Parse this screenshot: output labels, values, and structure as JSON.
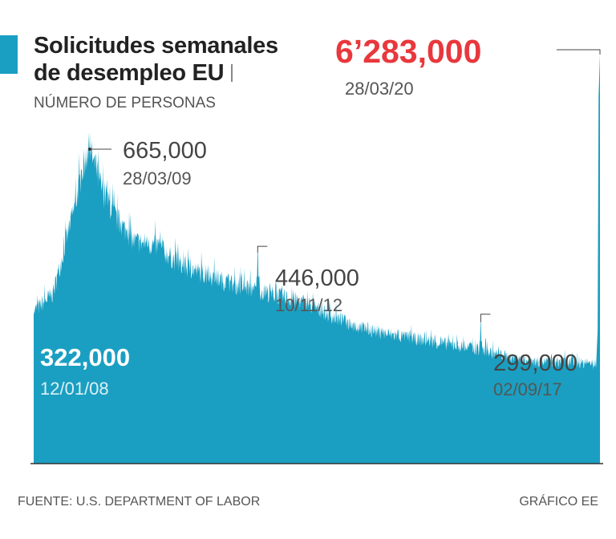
{
  "header": {
    "title_line1": "Solicitudes semanales",
    "title_line2": "de desempleo EU",
    "subtitle": "NÚMERO DE PERSONAS"
  },
  "footer": {
    "source": "FUENTE: U.S. DEPARTMENT OF LABOR",
    "credit": "GRÁFICO EE"
  },
  "colors": {
    "area": "#1a9fc2",
    "accent": "#1a9fc2",
    "highlight": "#e8383d",
    "axis": "#333333"
  },
  "chart_data": {
    "type": "area",
    "title": "Solicitudes semanales de desempleo EU",
    "ylabel": "NÚMERO DE PERSONAS",
    "xlim": [
      2008.03,
      2020.24
    ],
    "ylim": [
      0,
      6400000
    ],
    "scale_note": "values below ~700,000 share a stretched scale; the 2020 spike is drawn to the top",
    "anchors": [
      {
        "x": 2008.03,
        "y": 322000
      },
      {
        "x": 2008.45,
        "y": 360000
      },
      {
        "x": 2008.75,
        "y": 480000
      },
      {
        "x": 2008.95,
        "y": 560000
      },
      {
        "x": 2009.1,
        "y": 630000
      },
      {
        "x": 2009.24,
        "y": 665000
      },
      {
        "x": 2009.5,
        "y": 580000
      },
      {
        "x": 2009.8,
        "y": 520000
      },
      {
        "x": 2010.2,
        "y": 470000
      },
      {
        "x": 2010.7,
        "y": 460000
      },
      {
        "x": 2011.2,
        "y": 420000
      },
      {
        "x": 2011.6,
        "y": 405000
      },
      {
        "x": 2011.9,
        "y": 395000
      },
      {
        "x": 2012.3,
        "y": 380000
      },
      {
        "x": 2012.7,
        "y": 370000
      },
      {
        "x": 2013.3,
        "y": 355000
      },
      {
        "x": 2013.9,
        "y": 340000
      },
      {
        "x": 2014.5,
        "y": 310000
      },
      {
        "x": 2015.0,
        "y": 290000
      },
      {
        "x": 2015.6,
        "y": 275000
      },
      {
        "x": 2016.2,
        "y": 265000
      },
      {
        "x": 2016.8,
        "y": 255000
      },
      {
        "x": 2017.4,
        "y": 245000
      },
      {
        "x": 2017.9,
        "y": 235000
      },
      {
        "x": 2018.5,
        "y": 220000
      },
      {
        "x": 2019.0,
        "y": 215000
      },
      {
        "x": 2019.6,
        "y": 215000
      },
      {
        "x": 2020.1,
        "y": 210000
      },
      {
        "x": 2020.16,
        "y": 211000
      }
    ],
    "spikes": [
      {
        "x": 2012.86,
        "y": 446000
      },
      {
        "x": 2017.67,
        "y": 299000
      }
    ],
    "final": [
      {
        "x": 2020.19,
        "y": 281000
      },
      {
        "x": 2020.21,
        "y": 3307000
      },
      {
        "x": 2020.24,
        "y": 6283000
      }
    ],
    "annotations": [
      {
        "id": "start",
        "value": "322,000",
        "date": "12/01/08",
        "x": 2008.03,
        "y": 322000
      },
      {
        "id": "peak2009",
        "value": "665,000",
        "date": "28/03/09",
        "x": 2009.24,
        "y": 665000
      },
      {
        "id": "spike2012",
        "value": "446,000",
        "date": "10/11/12",
        "x": 2012.86,
        "y": 446000
      },
      {
        "id": "spike2017",
        "value": "299,000",
        "date": "02/09/17",
        "x": 2017.67,
        "y": 299000
      },
      {
        "id": "peak2020",
        "value": "6’283,000",
        "date": "28/03/20",
        "x": 2020.24,
        "y": 6283000
      }
    ]
  }
}
